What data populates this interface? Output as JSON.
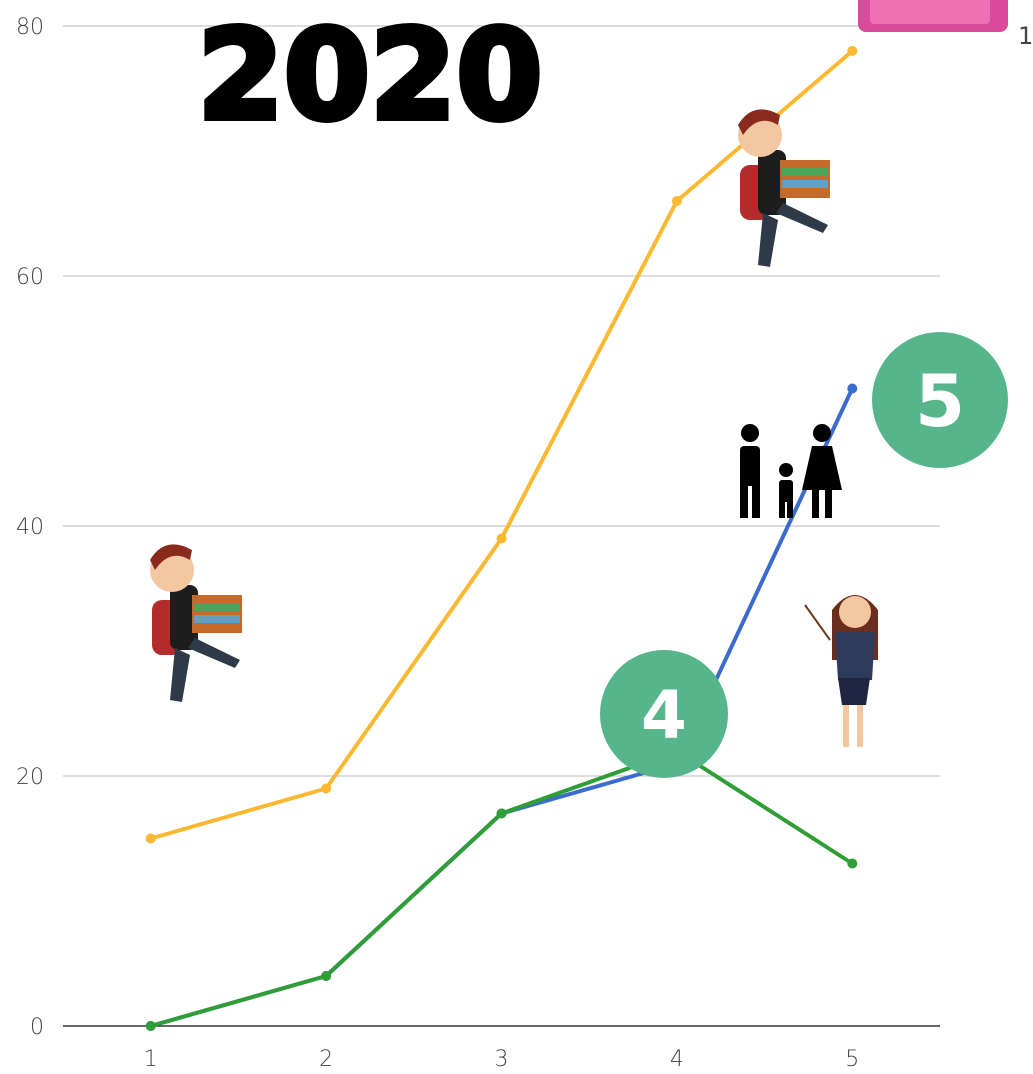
{
  "chart_data": {
    "type": "line",
    "annotations": [
      "2020",
      "4",
      "5",
      "1"
    ],
    "x": [
      1,
      2,
      3,
      4,
      5
    ],
    "series": [
      {
        "color": "#fbb931",
        "values": [
          15,
          19,
          39,
          66,
          78
        ]
      },
      {
        "color": "#3c6bcf",
        "values": [
          0,
          4,
          17,
          21,
          51
        ]
      },
      {
        "color": "#2f9e36",
        "values": [
          0,
          4,
          17,
          22,
          13
        ]
      }
    ],
    "xlim": [
      0.5,
      5.5
    ],
    "xticks": [
      1,
      2,
      3,
      4,
      5
    ],
    "ylim": [
      0,
      80
    ],
    "yticks": [
      0,
      20,
      40,
      60,
      80
    ],
    "grid": true
  }
}
